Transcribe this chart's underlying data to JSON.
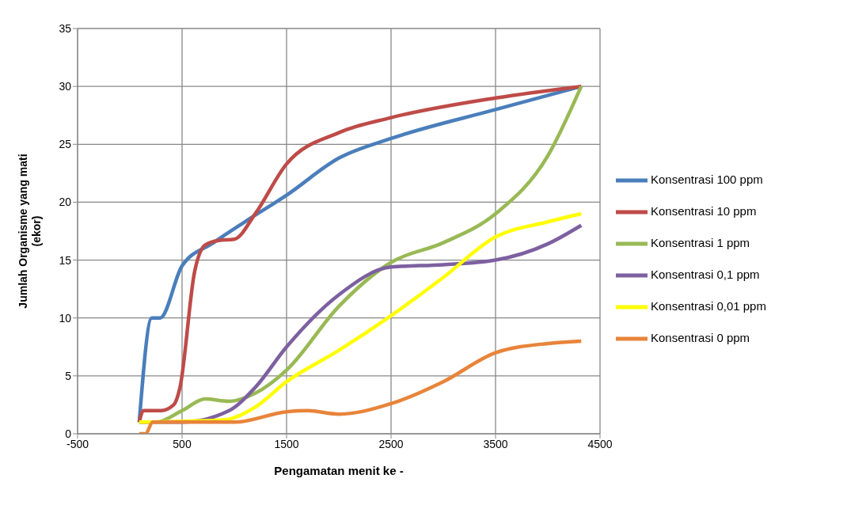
{
  "chart_data": {
    "type": "line",
    "xlabel": "Pengamatan menit ke -",
    "ylabel": "Jumlah Organisme yang mati (ekor)",
    "xlim": [
      -500,
      4500
    ],
    "xticks": [
      -500,
      500,
      1500,
      2500,
      3500,
      4500
    ],
    "ylim": [
      0,
      35
    ],
    "yticks": [
      0,
      5,
      10,
      15,
      20,
      25,
      30,
      35
    ],
    "grid": true,
    "legend": "right",
    "marker": "none",
    "line_style": "solid",
    "series": [
      {
        "name": "Konsentrasi 100 ppm",
        "color": "#4a7ebb",
        "x": [
          90,
          210,
          290,
          500,
          800,
          1100,
          1500,
          2000,
          2500,
          3500,
          4320
        ],
        "values": [
          1,
          10,
          10,
          14.5,
          16.5,
          18.3,
          20.6,
          23.8,
          25.5,
          28,
          30
        ]
      },
      {
        "name": "Konsentrasi 10 ppm",
        "color": "#be4b48",
        "x": [
          90,
          130,
          300,
          420,
          480,
          620,
          720,
          850,
          1000,
          1200,
          1500,
          2000,
          2500,
          3500,
          4320
        ],
        "values": [
          1,
          2,
          2,
          2.5,
          4,
          14,
          16.3,
          16.7,
          16.8,
          19,
          23.3,
          26,
          27.3,
          29,
          30
        ]
      },
      {
        "name": "Konsentrasi 1 ppm",
        "color": "#98b954",
        "x": [
          90,
          250,
          500,
          720,
          950,
          1200,
          1500,
          2000,
          2500,
          3000,
          3500,
          4000,
          4320
        ],
        "values": [
          1,
          1,
          2,
          3,
          2.8,
          3.5,
          5.5,
          11,
          14.8,
          16.5,
          19,
          24,
          30
        ]
      },
      {
        "name": "Konsentrasi 0,1 ppm",
        "color": "#7d60a0",
        "x": [
          90,
          500,
          950,
          1200,
          1500,
          2000,
          2500,
          3000,
          3500,
          4000,
          4320
        ],
        "values": [
          1,
          1,
          2,
          4,
          7.5,
          12,
          14.4,
          14.6,
          15,
          16.4,
          18
        ]
      },
      {
        "name": "Konsentrasi 0,01 ppm",
        "color": "#ffff00",
        "x": [
          90,
          900,
          1200,
          1500,
          2000,
          2500,
          3000,
          3500,
          4000,
          4320
        ],
        "values": [
          1,
          1.2,
          2.3,
          4.5,
          7.2,
          10.2,
          13.5,
          17,
          18.3,
          19
        ]
      },
      {
        "name": "Konsentrasi 0 ppm",
        "color": "#e8843a",
        "x": [
          90,
          150,
          220,
          500,
          1000,
          1500,
          1700,
          2000,
          2500,
          3000,
          3500,
          4000,
          4320
        ],
        "values": [
          0,
          0,
          1,
          1,
          1,
          1.9,
          2,
          1.7,
          2.6,
          4.5,
          7,
          7.8,
          8
        ]
      }
    ]
  }
}
